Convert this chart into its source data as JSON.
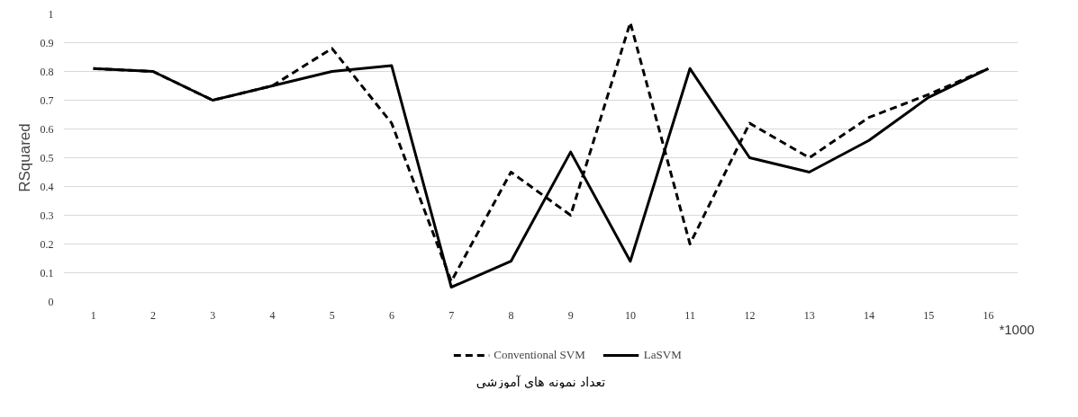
{
  "chart_data": {
    "type": "line",
    "xlabel": "تعداد نمونه های آموزشی",
    "ylabel": "RSquared",
    "x": [
      1,
      2,
      3,
      4,
      5,
      6,
      7,
      8,
      9,
      10,
      11,
      12,
      13,
      14,
      15,
      16
    ],
    "xlim": [
      0.5,
      16.5
    ],
    "xticks": [
      1,
      2,
      3,
      4,
      5,
      6,
      7,
      8,
      9,
      10,
      11,
      12,
      13,
      14,
      15,
      16
    ],
    "ylim": [
      0,
      1
    ],
    "yticks": [
      0,
      0.1,
      0.2,
      0.3,
      0.4,
      0.5,
      0.6,
      0.7,
      0.8,
      0.9,
      1
    ],
    "series": [
      {
        "name": "Conventional SVM",
        "color": "#000000",
        "line_style": "dashed",
        "values": [
          0.81,
          0.8,
          0.7,
          0.75,
          0.88,
          0.62,
          0.07,
          0.45,
          0.3,
          0.97,
          0.2,
          0.62,
          0.5,
          0.64,
          0.72,
          0.81
        ]
      },
      {
        "name": "LaSVM",
        "color": "#000000",
        "line_style": "solid",
        "values": [
          0.81,
          0.8,
          0.7,
          0.75,
          0.8,
          0.82,
          0.05,
          0.14,
          0.52,
          0.14,
          0.81,
          0.5,
          0.45,
          0.56,
          0.71,
          0.81
        ]
      }
    ],
    "annotations": [
      "*1000"
    ],
    "grid": "y",
    "legend": "bottom",
    "marker": "none"
  }
}
